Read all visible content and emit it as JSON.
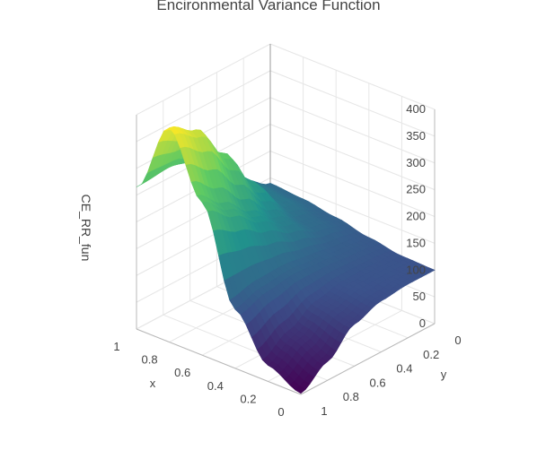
{
  "chart_data": {
    "type": "surface",
    "title": "Encironmental Variance Function",
    "xlabel": "x",
    "ylabel": "y",
    "zlabel": "CE_RR_fun",
    "x_range": [
      0,
      1
    ],
    "y_range": [
      0,
      1
    ],
    "z_range": [
      0,
      400
    ],
    "x_ticks": [
      "0",
      "0.2",
      "0.4",
      "0.6",
      "0.8",
      "1"
    ],
    "y_ticks": [
      "0",
      "0.2",
      "0.4",
      "0.6",
      "0.8",
      "1"
    ],
    "z_ticks": [
      "0",
      "50",
      "100",
      "150",
      "200",
      "250",
      "300",
      "350",
      "400"
    ],
    "colorscale": "Viridis",
    "colorscale_stops": [
      "#440154",
      "#3b528b",
      "#21918c",
      "#5ec962",
      "#fde725"
    ],
    "sample_x": [
      0,
      0.2,
      0.4,
      0.6,
      0.8,
      1
    ],
    "sample_y": [
      0,
      0.2,
      0.4,
      0.6,
      0.8,
      1
    ],
    "sample_z": [
      [
        100,
        100,
        95,
        78,
        35,
        2
      ],
      [
        102,
        104,
        102,
        90,
        60,
        30
      ],
      [
        112,
        118,
        125,
        130,
        125,
        110
      ],
      [
        125,
        140,
        170,
        205,
        245,
        285
      ],
      [
        135,
        160,
        220,
        300,
        370,
        400
      ],
      [
        140,
        170,
        225,
        265,
        272,
        265
      ]
    ]
  }
}
